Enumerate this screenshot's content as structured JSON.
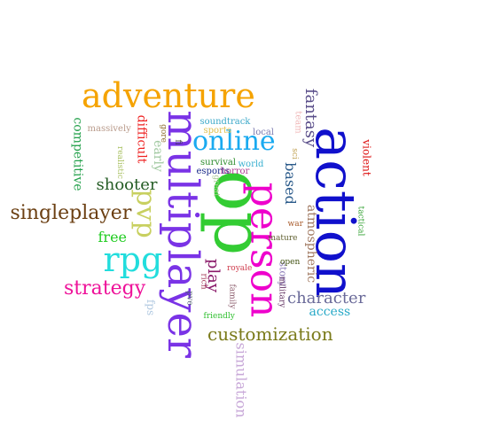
{
  "words": [
    {
      "text": "adventure",
      "color": "#f5a300",
      "rotated": false
    },
    {
      "text": "action",
      "color": "#1010cc",
      "rotated": true
    },
    {
      "text": "op",
      "color": "#33cc33",
      "rotated": true
    },
    {
      "text": "multiplayer",
      "color": "#7a33e6",
      "rotated": true
    },
    {
      "text": "person",
      "color": "#ee00cc",
      "rotated": true
    },
    {
      "text": "online",
      "color": "#1aaaf0",
      "rotated": false
    },
    {
      "text": "rpg",
      "color": "#22dddd",
      "rotated": false
    },
    {
      "text": "pvp",
      "color": "#c8d060",
      "rotated": true
    },
    {
      "text": "strategy",
      "color": "#ee1199",
      "rotated": false
    },
    {
      "text": "singleplayer",
      "color": "#6b3f12",
      "rotated": false
    },
    {
      "text": "customization",
      "color": "#7a7a1a",
      "rotated": false
    },
    {
      "text": "character",
      "color": "#6a6a99",
      "rotated": false
    },
    {
      "text": "shooter",
      "color": "#245c24",
      "rotated": false
    },
    {
      "text": "fantasy",
      "color": "#5a4e8a",
      "rotated": true
    },
    {
      "text": "play",
      "color": "#8a1a6a",
      "rotated": true
    },
    {
      "text": "based",
      "color": "#2a5a8a",
      "rotated": true
    },
    {
      "text": "atmospheric",
      "color": "#a07860",
      "rotated": true
    },
    {
      "text": "free",
      "color": "#22cc22",
      "rotated": false
    },
    {
      "text": "competitive",
      "color": "#22a04a",
      "rotated": true
    },
    {
      "text": "early",
      "color": "#a0c8a0",
      "rotated": true
    },
    {
      "text": "simulation",
      "color": "#c8a8d8",
      "rotated": true
    },
    {
      "text": "access",
      "color": "#2aaac8",
      "rotated": false
    },
    {
      "text": "difficult",
      "color": "#ee2020",
      "rotated": true
    },
    {
      "text": "violent",
      "color": "#dd1010",
      "rotated": true
    },
    {
      "text": "story",
      "color": "#8a7ab8",
      "rotated": true
    },
    {
      "text": "fps",
      "color": "#b0c8e0",
      "rotated": true
    },
    {
      "text": "massively",
      "color": "#b89a8a",
      "rotated": false
    },
    {
      "text": "survival",
      "color": "#2a8a2a",
      "rotated": false
    },
    {
      "text": "soundtrack",
      "color": "#3aa8c8",
      "rotated": false
    },
    {
      "text": "sports",
      "color": "#e0c050",
      "rotated": false
    },
    {
      "text": "team",
      "color": "#f0b8b8",
      "rotated": true
    },
    {
      "text": "esports",
      "color": "#1a2a8a",
      "rotated": false
    },
    {
      "text": "horror",
      "color": "#b03a90",
      "rotated": false
    },
    {
      "text": "world",
      "color": "#3ab0d0",
      "rotated": false
    },
    {
      "text": "local",
      "color": "#7a7ab0",
      "rotated": false
    },
    {
      "text": "realistic",
      "color": "#a8c060",
      "rotated": true
    },
    {
      "text": "gore",
      "color": "#8a6a2a",
      "rotated": true
    },
    {
      "text": "fi",
      "color": "#303030",
      "rotated": true
    },
    {
      "text": "sci",
      "color": "#c0a050",
      "rotated": true
    },
    {
      "text": "great",
      "color": "#a8c890",
      "rotated": true
    },
    {
      "text": "war",
      "color": "#a85a2a",
      "rotated": false
    },
    {
      "text": "mature",
      "color": "#606030",
      "rotated": false
    },
    {
      "text": "tactical",
      "color": "#30a030",
      "rotated": true
    },
    {
      "text": "open",
      "color": "#405010",
      "rotated": false
    },
    {
      "text": "royale",
      "color": "#d04050",
      "rotated": false
    },
    {
      "text": "rich",
      "color": "#a03050",
      "rotated": true
    },
    {
      "text": "military",
      "color": "#603060",
      "rotated": true
    },
    {
      "text": "family",
      "color": "#8a5a6a",
      "rotated": true
    },
    {
      "text": "pve",
      "color": "#506070",
      "rotated": true
    },
    {
      "text": "friendly",
      "color": "#30c030",
      "rotated": false
    }
  ]
}
